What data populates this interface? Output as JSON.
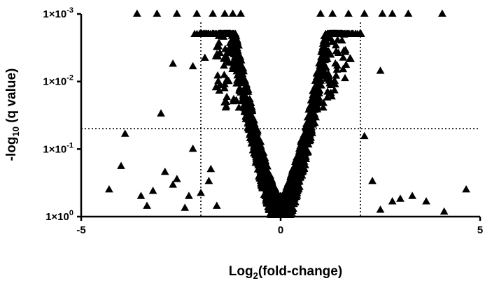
{
  "chart_data": {
    "type": "scatter",
    "title": "",
    "xlabel": {
      "base": "Log",
      "sub": "2",
      "rest": "(fold-change)"
    },
    "ylabel": {
      "pre": "-log",
      "sub": "10",
      "post": " (q value)"
    },
    "x_axis": {
      "range": [
        -5,
        5
      ],
      "ticks": [
        -5,
        0,
        5
      ],
      "tick_labels": [
        "-5",
        "0",
        "5"
      ]
    },
    "y_axis": {
      "scale": "log-reversed",
      "range_q": [
        1,
        0.001
      ],
      "ticks_q": [
        1,
        0.1,
        0.01,
        0.001
      ],
      "tick_labels": [
        {
          "mant": "1×10",
          "exp": "0"
        },
        {
          "mant": "1×10",
          "exp": "-1"
        },
        {
          "mant": "1×10",
          "exp": "-2"
        },
        {
          "mant": "1×10",
          "exp": "-3"
        }
      ]
    },
    "thresholds": {
      "x": [
        -2,
        2
      ],
      "q": 0.05
    },
    "marker": "triangle",
    "marker_color": "#000000",
    "series": [
      {
        "points": [
          [
            -4.3,
            0.4
          ],
          [
            -4.0,
            0.18
          ],
          [
            -3.9,
            0.06
          ],
          [
            -3.5,
            0.5
          ],
          [
            -3.35,
            0.7
          ],
          [
            -3.2,
            0.42
          ],
          [
            -3.0,
            0.03
          ],
          [
            -2.9,
            0.22
          ],
          [
            -2.7,
            0.34
          ],
          [
            -2.6,
            0.28
          ],
          [
            -2.7,
            0.0055
          ],
          [
            -2.4,
            0.75
          ],
          [
            -2.3,
            0.5
          ],
          [
            -2.2,
            0.006
          ],
          [
            -2.2,
            0.1
          ],
          [
            -2.0,
            0.45
          ],
          [
            -1.8,
            0.3
          ],
          [
            -1.9,
            0.0045
          ],
          [
            -1.6,
            0.7
          ],
          [
            -1.75,
            0.2
          ],
          [
            -3.6,
            0.001
          ],
          [
            -3.1,
            0.001
          ],
          [
            -2.6,
            0.001
          ],
          [
            -2.1,
            0.001
          ],
          [
            -1.7,
            0.001
          ],
          [
            -1.4,
            0.001
          ],
          [
            -1.2,
            0.001
          ],
          [
            -1.0,
            0.001
          ],
          [
            1.0,
            0.001
          ],
          [
            1.3,
            0.001
          ],
          [
            1.7,
            0.001
          ],
          [
            2.1,
            0.001
          ],
          [
            2.55,
            0.001
          ],
          [
            2.8,
            0.001
          ],
          [
            3.2,
            0.001
          ],
          [
            4.05,
            0.001
          ],
          [
            2.5,
            0.007
          ],
          [
            2.1,
            0.065
          ],
          [
            2.3,
            0.3
          ],
          [
            2.5,
            0.8
          ],
          [
            2.8,
            0.6
          ],
          [
            3.0,
            0.55
          ],
          [
            3.3,
            0.5
          ],
          [
            3.65,
            0.6
          ],
          [
            4.1,
            0.85
          ],
          [
            4.65,
            0.4
          ]
        ],
        "cloud": {
          "count": 1700,
          "x_extent": [
            -2.5,
            2.3
          ],
          "q_min": 0.002
        }
      }
    ]
  }
}
